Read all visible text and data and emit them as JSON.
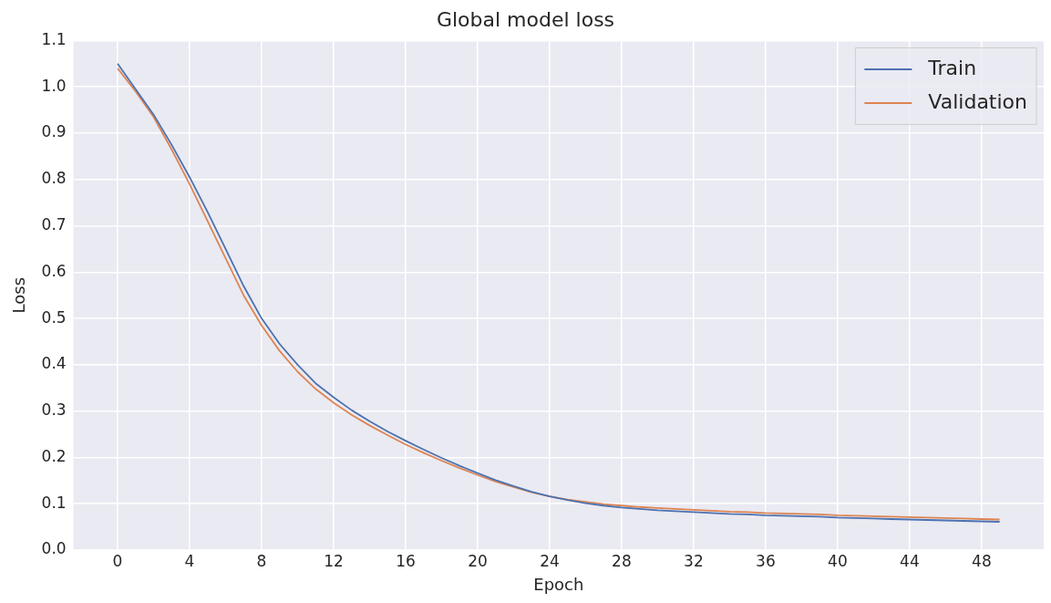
{
  "chart_data": {
    "type": "line",
    "title": "Global model loss",
    "xlabel": "Epoch",
    "ylabel": "Loss",
    "x": [
      0,
      1,
      2,
      3,
      4,
      5,
      6,
      7,
      8,
      9,
      10,
      11,
      12,
      13,
      14,
      15,
      16,
      17,
      18,
      19,
      20,
      21,
      22,
      23,
      24,
      25,
      26,
      27,
      28,
      29,
      30,
      31,
      32,
      33,
      34,
      35,
      36,
      37,
      38,
      39,
      40,
      41,
      42,
      43,
      44,
      45,
      46,
      47,
      48,
      49
    ],
    "series": [
      {
        "name": "Train",
        "color": "#4c72b0",
        "values": [
          1.05,
          0.995,
          0.94,
          0.875,
          0.805,
          0.73,
          0.65,
          0.57,
          0.5,
          0.445,
          0.4,
          0.36,
          0.33,
          0.302,
          0.278,
          0.256,
          0.236,
          0.217,
          0.199,
          0.182,
          0.166,
          0.151,
          0.138,
          0.126,
          0.116,
          0.108,
          0.101,
          0.096,
          0.092,
          0.089,
          0.086,
          0.084,
          0.082,
          0.08,
          0.078,
          0.077,
          0.075,
          0.074,
          0.073,
          0.072,
          0.07,
          0.069,
          0.068,
          0.067,
          0.066,
          0.065,
          0.064,
          0.063,
          0.062,
          0.061
        ]
      },
      {
        "name": "Validation",
        "color": "#dd8452",
        "values": [
          1.04,
          0.99,
          0.935,
          0.865,
          0.79,
          0.71,
          0.63,
          0.55,
          0.485,
          0.43,
          0.385,
          0.348,
          0.318,
          0.292,
          0.269,
          0.248,
          0.228,
          0.21,
          0.193,
          0.177,
          0.162,
          0.148,
          0.136,
          0.125,
          0.116,
          0.109,
          0.104,
          0.099,
          0.096,
          0.093,
          0.091,
          0.089,
          0.087,
          0.085,
          0.083,
          0.082,
          0.08,
          0.079,
          0.078,
          0.077,
          0.075,
          0.074,
          0.073,
          0.072,
          0.071,
          0.07,
          0.069,
          0.068,
          0.067,
          0.066
        ]
      }
    ],
    "xlim": [
      -2.45,
      51.45
    ],
    "xticks": [
      0,
      4,
      8,
      12,
      16,
      20,
      24,
      28,
      32,
      36,
      40,
      44,
      48
    ],
    "ylim": [
      0,
      1.1
    ],
    "yticks": [
      {
        "value": 0,
        "label": "0.0"
      },
      0.1,
      0.2,
      0.3,
      0.4,
      0.5,
      0.6,
      0.7,
      0.8,
      0.9,
      {
        "value": 1,
        "label": "1.0"
      },
      1.1
    ],
    "grid": true,
    "legend": "top right",
    "marker": "none",
    "line_style": "solid"
  }
}
